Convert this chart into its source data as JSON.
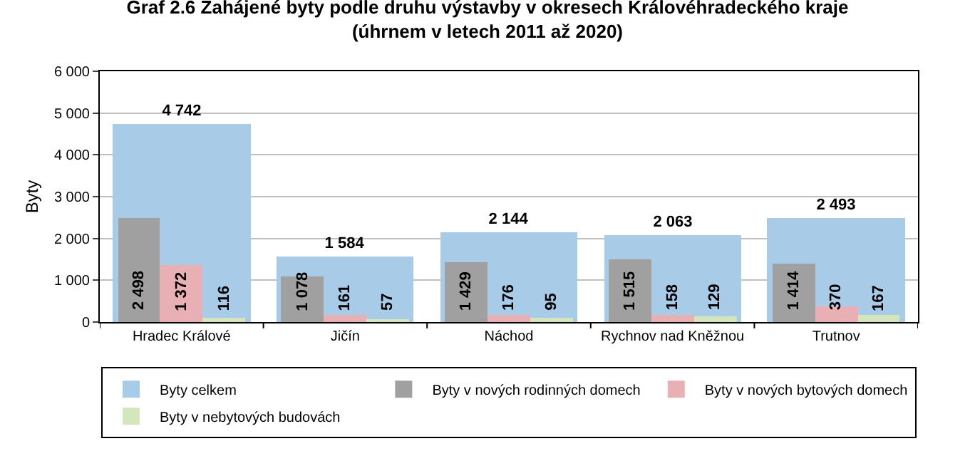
{
  "chart_data": {
    "type": "bar",
    "title": "Graf 2.6 Zahájené byty podle druhu výstavby v okresech Královéhradeckého kraje\n(úhrnem v letech 2011 až 2020)",
    "ylabel": "Byty",
    "categories": [
      "Hradec Králové",
      "Jičín",
      "Náchod",
      "Rychnov nad Kněžnou",
      "Trutnov"
    ],
    "series": [
      {
        "name": "Byty celkem",
        "color": "#a8cce8",
        "values": [
          4742,
          1584,
          2144,
          2063,
          2493
        ]
      },
      {
        "name": "Byty v nových rodinných domech",
        "color": "#a0a0a0",
        "values": [
          2498,
          1078,
          1429,
          1515,
          1414
        ]
      },
      {
        "name": "Byty v nových bytových domech",
        "color": "#e8b0b4",
        "values": [
          1372,
          161,
          176,
          158,
          370
        ]
      },
      {
        "name": "Byty v nebytových budovách",
        "color": "#d6e6bc",
        "values": [
          116,
          57,
          95,
          129,
          167
        ]
      }
    ],
    "ylim": [
      0,
      6000
    ],
    "yticks": [
      {
        "value": 0,
        "label": "0"
      },
      {
        "value": 1000,
        "label": "1 000"
      },
      {
        "value": 2000,
        "label": "2 000"
      },
      {
        "value": 3000,
        "label": "3 000"
      },
      {
        "value": 4000,
        "label": "4 000"
      },
      {
        "value": 5000,
        "label": "5 000"
      },
      {
        "value": 6000,
        "label": "6 000"
      }
    ],
    "grid": "y",
    "legend": "bottom",
    "data_labels": true
  }
}
